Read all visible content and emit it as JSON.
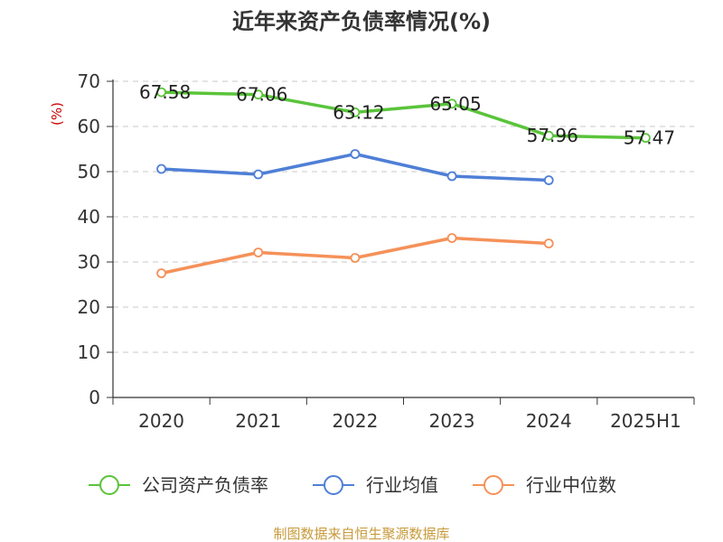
{
  "chart_data": {
    "type": "line",
    "title": "近年来资产负债率情况(%)",
    "ylabel": "(%)",
    "xlabel": "",
    "categories": [
      "2020",
      "2021",
      "2022",
      "2023",
      "2024",
      "2025H1"
    ],
    "ylim": [
      0,
      70
    ],
    "yticks": [
      0,
      10,
      20,
      30,
      40,
      50,
      60,
      70
    ],
    "grid": true,
    "legend_position": "bottom",
    "series": [
      {
        "name": "公司资产负债率",
        "color": "#5ac43b",
        "values": [
          67.58,
          67.06,
          63.12,
          65.05,
          57.96,
          57.47
        ],
        "labels": [
          "67.58",
          "67.06",
          "63.12",
          "65.05",
          "57.96",
          "57.47"
        ]
      },
      {
        "name": "行业均值",
        "color": "#4f7fd6",
        "values": [
          50.6,
          49.4,
          53.9,
          49.0,
          48.1,
          null
        ]
      },
      {
        "name": "行业中位数",
        "color": "#f59159",
        "values": [
          27.5,
          32.1,
          30.9,
          35.3,
          34.1,
          null
        ]
      }
    ]
  },
  "footer": {
    "source": "制图数据来自恒生聚源数据库"
  }
}
